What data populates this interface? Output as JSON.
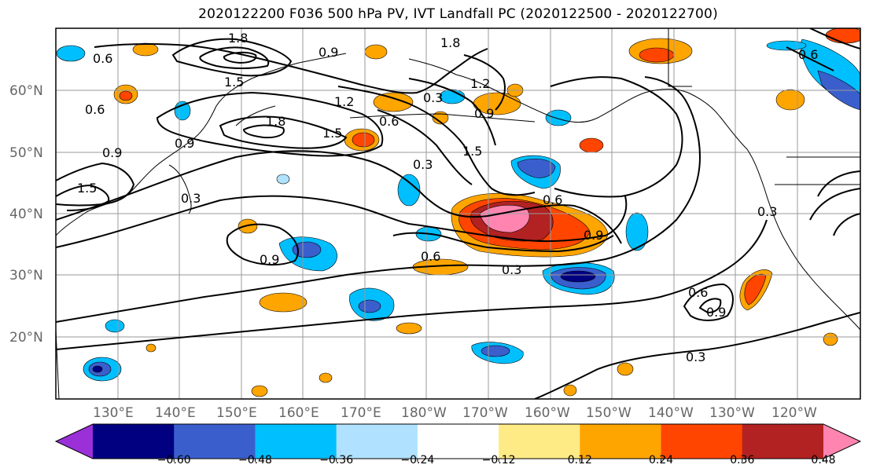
{
  "title": "2020122200 F036 500 hPa PV, IVT Landfall PC (2020122500 - 2020122700)",
  "lat_labels": [
    "60°N",
    "50°N",
    "40°N",
    "30°N",
    "20°N"
  ],
  "lon_labels": [
    "130°E",
    "140°E",
    "150°E",
    "160°E",
    "170°E",
    "180°W",
    "170°W",
    "160°W",
    "150°W",
    "140°W",
    "130°W",
    "120°W"
  ],
  "colorbar": {
    "ticks": [
      "−0.60",
      "−0.48",
      "−0.36",
      "−0.24",
      "−0.12",
      "0.12",
      "0.24",
      "0.36",
      "0.48",
      "0.60"
    ],
    "colors": [
      "#9b30d9",
      "#000080",
      "#3a5fcd",
      "#00bfff",
      "#b0e2ff",
      "#ffffff",
      "#ffeb85",
      "#ffa500",
      "#ff4500",
      "#b22222",
      "#ff85b0"
    ]
  },
  "contour_labels": [
    "1.8",
    "0.9",
    "0.6",
    "0.6",
    "1.5",
    "1.2",
    "1.8",
    "1.5",
    "0.9",
    "0.9",
    "1.5",
    "0.3",
    "0.3",
    "0.6",
    "1.8",
    "1.2",
    "0.9",
    "0.3",
    "1.5",
    "0.6",
    "0.9",
    "0.6",
    "0.3",
    "0.9",
    "0.6",
    "0.9",
    "0.3",
    "0.3",
    "0.6"
  ]
}
